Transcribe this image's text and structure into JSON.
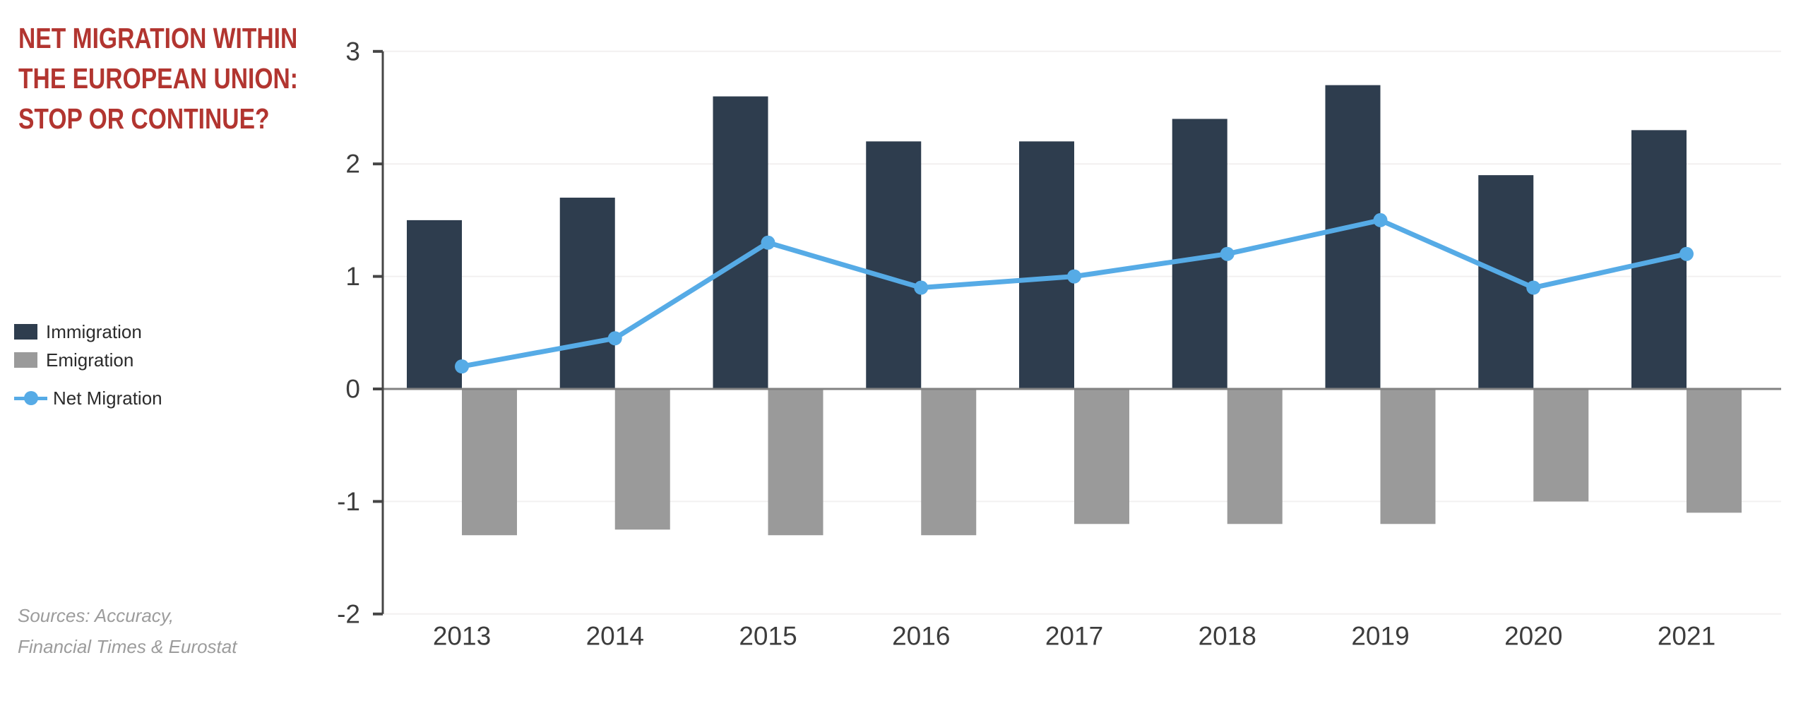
{
  "header": {
    "title_lines": [
      "NET MIGRATION WITHIN",
      "THE EUROPEAN UNION:",
      "STOP OR CONTINUE?"
    ],
    "title_color": "#b23530"
  },
  "legend": {
    "items": [
      {
        "label": "Immigration",
        "swatch": "square",
        "color": "#2e3d4e"
      },
      {
        "label": "Emigration",
        "swatch": "square",
        "color": "#9a9a9a"
      },
      {
        "label": "Net Migration",
        "swatch": "line",
        "color": "#56abe6"
      }
    ]
  },
  "sources": {
    "lines": [
      "Sources: Accuracy,",
      "Financial Times & Eurostat"
    ],
    "color": "#9c9c9c"
  },
  "chart_data": {
    "type": "bar",
    "subtype": "grouped-bars-with-line",
    "categories": [
      "2013",
      "2014",
      "2015",
      "2016",
      "2017",
      "2018",
      "2019",
      "2020",
      "2021"
    ],
    "series": [
      {
        "name": "Immigration",
        "type": "bar",
        "color": "#2e3d4e",
        "values": [
          1.5,
          1.7,
          2.6,
          2.2,
          2.2,
          2.4,
          2.7,
          1.9,
          2.3
        ]
      },
      {
        "name": "Emigration",
        "type": "bar",
        "color": "#9a9a9a",
        "values": [
          -1.3,
          -1.25,
          -1.3,
          -1.3,
          -1.2,
          -1.2,
          -1.2,
          -1.0,
          -1.1
        ]
      },
      {
        "name": "Net Migration",
        "type": "line",
        "color": "#56abe6",
        "values": [
          0.2,
          0.45,
          1.3,
          0.9,
          1.0,
          1.2,
          1.5,
          0.9,
          1.2
        ]
      }
    ],
    "title": "",
    "xlabel": "",
    "ylabel": "",
    "ylim": [
      -2,
      3
    ],
    "yticks": [
      3,
      2,
      1,
      0,
      -1,
      -2
    ],
    "grid": true,
    "legend_position": "left",
    "colors": {
      "gridline": "#f2f0f0",
      "zero_line": "#828282",
      "axis_line": "#454545",
      "tick_label": "#3d3d3d"
    }
  }
}
